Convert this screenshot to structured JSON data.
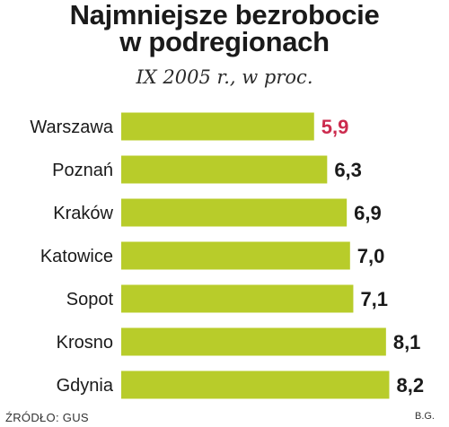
{
  "title_lines": [
    "Najmniejsze bezrobocie",
    "w podregionach"
  ],
  "subtitle": "IX 2005 r., w proc.",
  "source": "ŹRÓDŁO: GUS",
  "author": "B.G.",
  "colors": {
    "bar": "#b8cc2a",
    "highlight_label": "#cc2b4e",
    "label": "#1a1a1a"
  },
  "chart_data": {
    "type": "bar",
    "orientation": "horizontal",
    "categories": [
      "Warszawa",
      "Poznań",
      "Kraków",
      "Katowice",
      "Sopot",
      "Krosno",
      "Gdynia"
    ],
    "values": [
      5.9,
      6.3,
      6.9,
      7.0,
      7.1,
      8.1,
      8.2
    ],
    "value_labels": [
      "5,9",
      "6,3",
      "6,9",
      "7,0",
      "7,1",
      "8,1",
      "8,2"
    ],
    "highlight_index": 0,
    "grid": false
  }
}
